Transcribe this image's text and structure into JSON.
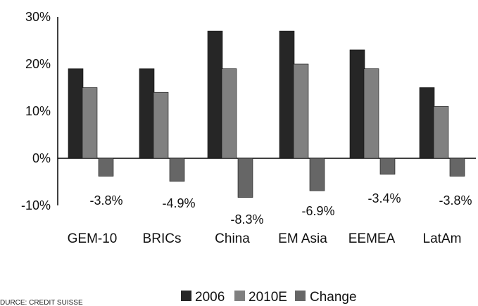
{
  "chart_data": {
    "type": "bar",
    "categories": [
      "GEM-10",
      "BRICs",
      "China",
      "EM Asia",
      "EEMEA",
      "LatAm"
    ],
    "series": [
      {
        "name": "2006",
        "values": [
          19,
          19,
          27,
          27,
          23,
          15
        ],
        "color": "#262626"
      },
      {
        "name": "2010E",
        "values": [
          15,
          14,
          19,
          20,
          19,
          11
        ],
        "color": "#808080"
      },
      {
        "name": "Change",
        "values": [
          -3.8,
          -4.9,
          -8.3,
          -6.9,
          -3.4,
          -3.8
        ],
        "color": "#666666"
      }
    ],
    "data_labels": [
      "-3.8%",
      "-4.9%",
      "-8.3%",
      "-6.9%",
      "-3.4%",
      "-3.8%"
    ],
    "y_ticks": [
      "30%",
      "20%",
      "10%",
      "0%",
      "-10%"
    ],
    "ylim": [
      -10,
      30
    ],
    "grid": false,
    "legend_position": "bottom",
    "source": "DURCE: CREDIT SUISSE"
  }
}
